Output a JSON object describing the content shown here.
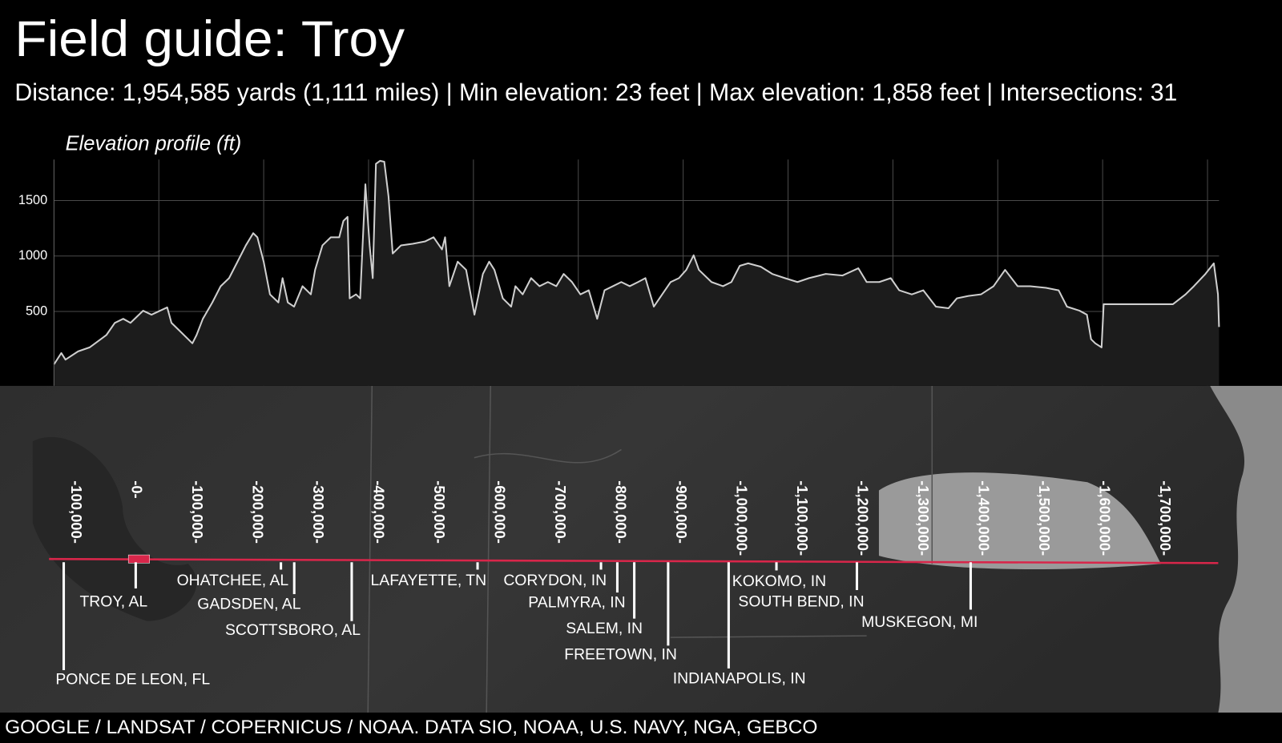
{
  "header": {
    "title": "Field guide: Troy",
    "subtitle": "Distance: 1,954,585 yards (1,111 miles) | Min elevation: 23 feet | Max elevation: 1,858 feet | Intersections: 31"
  },
  "chart_data": {
    "type": "line",
    "title": "Elevation profile (ft)",
    "color": "#cfcfcf",
    "grid": true,
    "x": [
      0,
      7,
      11,
      23,
      34,
      50,
      58,
      66,
      73,
      85,
      93,
      108,
      112,
      120,
      132,
      136,
      142,
      151,
      159,
      167,
      175,
      183,
      190,
      194,
      200,
      206,
      214,
      218,
      223,
      229,
      237,
      245,
      249,
      256,
      264,
      272,
      276,
      280,
      282,
      288,
      292,
      297,
      301,
      304,
      307,
      311,
      315,
      319,
      323,
      331,
      342,
      354,
      362,
      370,
      373,
      377,
      385,
      393,
      401,
      409,
      415,
      420,
      428,
      436,
      440,
      447,
      455,
      463,
      471,
      479,
      486,
      494,
      502,
      510,
      518,
      525,
      533,
      541,
      549,
      557,
      564,
      572,
      580,
      588,
      596,
      603,
      610,
      615,
      627,
      638,
      646,
      654,
      662,
      674,
      685,
      697,
      709,
      720,
      736,
      752,
      767,
      775,
      787,
      798,
      806,
      818,
      829,
      841,
      853,
      861,
      872,
      884,
      896,
      907,
      919,
      931,
      946,
      958,
      966,
      978,
      985,
      989,
      993,
      999,
      1001,
      1040,
      1067,
      1079,
      1087,
      1098,
      1106,
      1110,
      1111
    ],
    "values": [
      23,
      125,
      66,
      140,
      176,
      287,
      397,
      434,
      397,
      507,
      471,
      537,
      397,
      324,
      213,
      287,
      434,
      581,
      728,
      801,
      949,
      1096,
      1206,
      1169,
      949,
      654,
      581,
      801,
      581,
      544,
      728,
      654,
      875,
      1096,
      1169,
      1169,
      1316,
      1353,
      618,
      654,
      618,
      1647,
      1096,
      801,
      1831,
      1858,
      1850,
      1537,
      1022,
      1096,
      1110,
      1132,
      1169,
      1059,
      1169,
      728,
      949,
      875,
      471,
      838,
      949,
      875,
      618,
      544,
      728,
      654,
      801,
      728,
      765,
      728,
      838,
      765,
      654,
      691,
      434,
      691,
      728,
      765,
      728,
      765,
      801,
      544,
      654,
      765,
      801,
      875,
      1007,
      875,
      765,
      728,
      765,
      912,
      934,
      904,
      838,
      801,
      765,
      801,
      838,
      824,
      890,
      765,
      765,
      801,
      691,
      654,
      691,
      544,
      529,
      618,
      640,
      654,
      728,
      875,
      728,
      728,
      713,
      691,
      544,
      507,
      471,
      250,
      213,
      176,
      566,
      566,
      566,
      654,
      728,
      838,
      934,
      654,
      360
    ],
    "xlim": [
      0,
      1111
    ],
    "xticks": [
      100,
      200,
      300,
      400,
      500,
      600,
      700,
      800,
      900,
      1000,
      1100
    ],
    "ylim": [
      -170,
      1870
    ],
    "yticks": [
      500,
      1000,
      1500
    ]
  },
  "map": {
    "ticks": [
      {
        "value": -100000,
        "label": "-100,000-"
      },
      {
        "value": 0,
        "label": "-0-"
      },
      {
        "value": 100000,
        "label": "-100,000-"
      },
      {
        "value": 200000,
        "label": "-200,000-"
      },
      {
        "value": 300000,
        "label": "-300,000-"
      },
      {
        "value": 400000,
        "label": "-400,000-"
      },
      {
        "value": 500000,
        "label": "-500,000-"
      },
      {
        "value": 600000,
        "label": "-600,000-"
      },
      {
        "value": 700000,
        "label": "-700,000-"
      },
      {
        "value": 800000,
        "label": "-800,000-"
      },
      {
        "value": 900000,
        "label": "-900,000-"
      },
      {
        "value": 1000000,
        "label": "-1,000,000-"
      },
      {
        "value": 1100000,
        "label": "-1,100,000-"
      },
      {
        "value": 1200000,
        "label": "-1,200,000-"
      },
      {
        "value": 1300000,
        "label": "-1,300,000-"
      },
      {
        "value": 1400000,
        "label": "-1,400,000-"
      },
      {
        "value": 1500000,
        "label": "-1,500,000-"
      },
      {
        "value": 1600000,
        "label": "-1,600,000-"
      },
      {
        "value": 1700000,
        "label": "-1,700,000-"
      }
    ],
    "places": [
      {
        "label": "PONCE DE LEON, FL",
        "yards": -119000
      },
      {
        "label": "TROY, AL",
        "yards": 0
      },
      {
        "label": "OHATCHEE, AL",
        "yards": 240000
      },
      {
        "label": "GADSDEN, AL",
        "yards": 262000
      },
      {
        "label": "SCOTTSBORO, AL",
        "yards": 357000
      },
      {
        "label": "LAFAYETTE, TN",
        "yards": 565000
      },
      {
        "label": "CORYDON, IN",
        "yards": 769000
      },
      {
        "label": "PALMYRA, IN",
        "yards": 796000
      },
      {
        "label": "SALEM, IN",
        "yards": 824000
      },
      {
        "label": "FREETOWN, IN",
        "yards": 880000
      },
      {
        "label": "INDIANAPOLIS, IN",
        "yards": 980000
      },
      {
        "label": "KOKOMO, IN",
        "yards": 1059000
      },
      {
        "label": "SOUTH BEND, IN",
        "yards": 1192000
      },
      {
        "label": "MUSKEGON, MI",
        "yards": 1380000
      }
    ],
    "credit": "GOOGLE / LANDSAT / COPERNICUS / NOAA. DATA SIO, NOAA, U.S. NAVY, NGA, GEBCO"
  }
}
